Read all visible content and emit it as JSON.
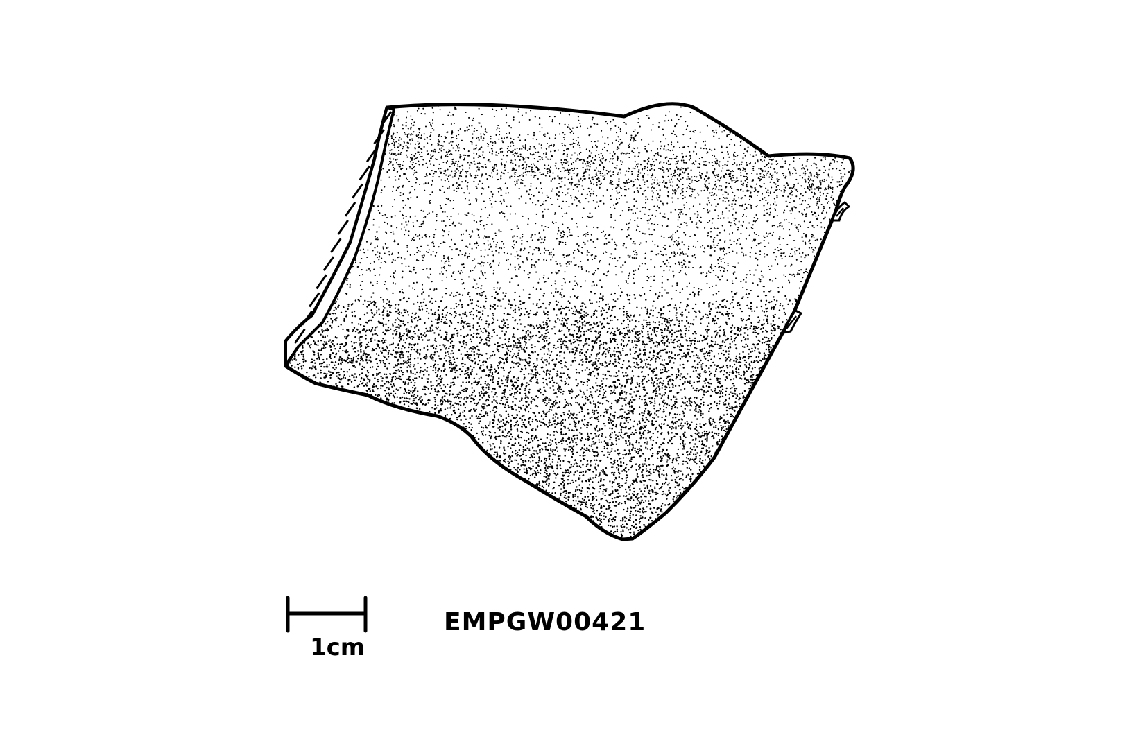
{
  "artifact": {
    "id_label": "EMPGW00421"
  },
  "scale_bar": {
    "label": "1cm"
  },
  "colors": {
    "ink": "#000000",
    "paper": "#ffffff"
  }
}
